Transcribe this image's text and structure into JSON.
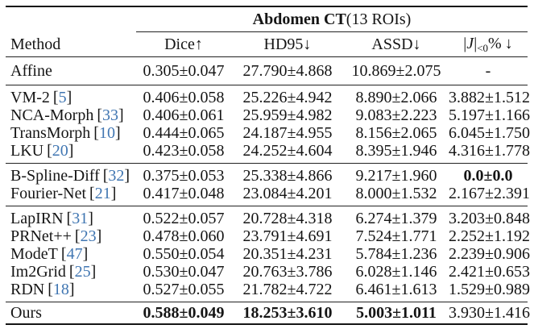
{
  "paper_table": {
    "title": {
      "bold": "Abdomen CT",
      "normal": " (13 ROIs)"
    },
    "cite_open": "[",
    "cite_close": "]",
    "headers": {
      "method": "Method",
      "dice": "Dice↑",
      "hd95": "HD95↓",
      "assd": "ASSD↓",
      "jac": {
        "bar1": "|",
        "J": "J",
        "bar2": "|",
        "sub": "<0",
        "pct": "%",
        "arrow": "↓"
      }
    },
    "groups": [
      {
        "rows": [
          {
            "method": "Affine",
            "dice": "0.305±0.047",
            "hd95": "27.790±4.868",
            "assd": "10.869±2.075",
            "jac": "-"
          }
        ]
      },
      {
        "rows": [
          {
            "method": "VM-2",
            "cite": "5",
            "dice": "0.406±0.058",
            "hd95": "25.226±4.942",
            "assd": "8.890±2.066",
            "jac": "3.882±1.512"
          },
          {
            "method": "NCA-Morph",
            "cite": "33",
            "dice": "0.406±0.061",
            "hd95": "25.959±4.982",
            "assd": "9.083±2.223",
            "jac": "5.197±1.166"
          },
          {
            "method": "TransMorph",
            "cite": "10",
            "dice": "0.444±0.065",
            "hd95": "24.187±4.955",
            "assd": "8.156±2.065",
            "jac": "6.045±1.750"
          },
          {
            "method": "LKU",
            "cite": "20",
            "dice": "0.423±0.058",
            "hd95": "24.252±4.604",
            "assd": "8.395±1.946",
            "jac": "4.316±1.778"
          }
        ]
      },
      {
        "rows": [
          {
            "method": "B-Spline-Diff",
            "cite": "32",
            "dice": "0.375±0.053",
            "hd95": "25.338±4.866",
            "assd": "9.217±1.960",
            "jac": "0.0±0.0"
          },
          {
            "method": "Fourier-Net",
            "cite": "21",
            "dice": "0.417±0.048",
            "hd95": "23.084±4.201",
            "assd": "8.000±1.532",
            "jac": "2.167±2.391"
          }
        ]
      },
      {
        "rows": [
          {
            "method": "LapIRN",
            "cite": "31",
            "dice": "0.522±0.057",
            "hd95": "20.728±4.318",
            "assd": "6.274±1.379",
            "jac": "3.203±0.848"
          },
          {
            "method": "PRNet++",
            "cite": "23",
            "dice": "0.478±0.060",
            "hd95": "23.791±4.691",
            "assd": "7.524±1.771",
            "jac": "2.252±1.192"
          },
          {
            "method": "ModeT",
            "cite": "47",
            "dice": "0.550±0.054",
            "hd95": "20.351±4.231",
            "assd": "5.784±1.236",
            "jac": "2.239±0.906"
          },
          {
            "method": "Im2Grid",
            "cite": "25",
            "dice": "0.530±0.047",
            "hd95": "20.763±3.786",
            "assd": "6.028±1.146",
            "jac": "2.421±0.653"
          },
          {
            "method": "RDN",
            "cite": "18",
            "dice": "0.527±0.055",
            "hd95": "21.782±4.722",
            "assd": "6.461±1.613",
            "jac": "1.529±0.989"
          }
        ]
      },
      {
        "rows": [
          {
            "method": "Ours",
            "dice": "0.588±0.049",
            "hd95": "18.253±3.610",
            "assd": "5.003±1.011",
            "jac": "3.930±1.416"
          }
        ]
      }
    ]
  }
}
